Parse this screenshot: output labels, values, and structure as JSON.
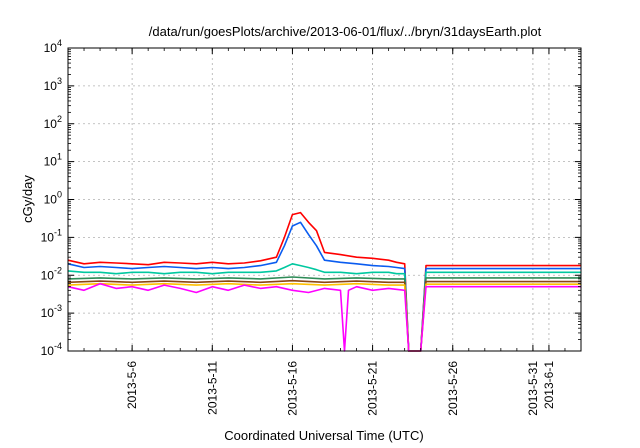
{
  "chart_data": {
    "type": "line",
    "title": "/data/run/goesPlots/archive/2013-06-01/flux/../bryn/31daysEarth.plot",
    "xlabel": "Coordinated Universal Time (UTC)",
    "ylabel": "cGy/day",
    "yscale": "log",
    "ylim": [
      0.0001,
      10000
    ],
    "xlim": [
      "2013-05-02",
      "2013-06-03"
    ],
    "grid": true,
    "legend": "none",
    "y_ticks": [
      {
        "base": "10",
        "exp": "-4"
      },
      {
        "base": "10",
        "exp": "-3"
      },
      {
        "base": "10",
        "exp": "-2"
      },
      {
        "base": "10",
        "exp": "-1"
      },
      {
        "base": "10",
        "exp": "0"
      },
      {
        "base": "10",
        "exp": "1"
      },
      {
        "base": "10",
        "exp": "2"
      },
      {
        "base": "10",
        "exp": "3"
      },
      {
        "base": "10",
        "exp": "4"
      }
    ],
    "x_ticks": [
      "2013-5-6",
      "2013-5-11",
      "2013-5-16",
      "2013-5-21",
      "2013-5-26",
      "2013-5-31",
      "2013-6-1"
    ],
    "series": [
      {
        "color": "#ff0000",
        "x": [
          "2013-05-02",
          "2013-05-03",
          "2013-05-04",
          "2013-05-05",
          "2013-05-06",
          "2013-05-07",
          "2013-05-08",
          "2013-05-09",
          "2013-05-10",
          "2013-05-11",
          "2013-05-12",
          "2013-05-13",
          "2013-05-14",
          "2013-05-15",
          "2013-05-15 12:00",
          "2013-05-16",
          "2013-05-16 12:00",
          "2013-05-17",
          "2013-05-17 12:00",
          "2013-05-18",
          "2013-05-19",
          "2013-05-20",
          "2013-05-21",
          "2013-05-22",
          "2013-05-22 12:00",
          "2013-05-23",
          "2013-05-23 06:00",
          "2013-05-24",
          "2013-05-24 08:00",
          "2013-06-03"
        ],
        "y": [
          0.025,
          0.02,
          0.022,
          0.021,
          0.02,
          0.019,
          0.022,
          0.021,
          0.02,
          0.022,
          0.02,
          0.021,
          0.024,
          0.03,
          0.1,
          0.4,
          0.45,
          0.25,
          0.15,
          0.04,
          0.035,
          0.03,
          0.028,
          0.025,
          0.022,
          0.02,
          0.0001,
          0.0001,
          0.018,
          0.018
        ]
      },
      {
        "color": "#0a5cf0",
        "x": [
          "2013-05-02",
          "2013-05-03",
          "2013-05-04",
          "2013-05-05",
          "2013-05-06",
          "2013-05-07",
          "2013-05-08",
          "2013-05-09",
          "2013-05-10",
          "2013-05-11",
          "2013-05-12",
          "2013-05-13",
          "2013-05-14",
          "2013-05-15",
          "2013-05-15 12:00",
          "2013-05-16",
          "2013-05-16 12:00",
          "2013-05-17",
          "2013-05-17 12:00",
          "2013-05-18",
          "2013-05-19",
          "2013-05-20",
          "2013-05-21",
          "2013-05-22",
          "2013-05-22 12:00",
          "2013-05-23",
          "2013-05-23 06:00",
          "2013-05-24",
          "2013-05-24 08:00",
          "2013-06-03"
        ],
        "y": [
          0.02,
          0.016,
          0.017,
          0.016,
          0.015,
          0.016,
          0.017,
          0.016,
          0.015,
          0.016,
          0.015,
          0.016,
          0.018,
          0.022,
          0.06,
          0.2,
          0.25,
          0.12,
          0.06,
          0.025,
          0.022,
          0.02,
          0.018,
          0.017,
          0.016,
          0.015,
          0.0001,
          0.0001,
          0.015,
          0.015
        ]
      },
      {
        "color": "#00c8a0",
        "x": [
          "2013-05-02",
          "2013-05-03",
          "2013-05-04",
          "2013-05-05",
          "2013-05-06",
          "2013-05-07",
          "2013-05-08",
          "2013-05-09",
          "2013-05-10",
          "2013-05-11",
          "2013-05-12",
          "2013-05-13",
          "2013-05-14",
          "2013-05-15",
          "2013-05-15 12:00",
          "2013-05-16",
          "2013-05-16 12:00",
          "2013-05-17",
          "2013-05-17 12:00",
          "2013-05-18",
          "2013-05-19",
          "2013-05-20",
          "2013-05-21",
          "2013-05-22",
          "2013-05-22 12:00",
          "2013-05-23",
          "2013-05-23 06:00",
          "2013-05-24",
          "2013-05-24 08:00",
          "2013-06-03"
        ],
        "y": [
          0.013,
          0.012,
          0.012,
          0.011,
          0.012,
          0.012,
          0.011,
          0.012,
          0.012,
          0.011,
          0.012,
          0.012,
          0.012,
          0.013,
          0.016,
          0.02,
          0.018,
          0.016,
          0.014,
          0.012,
          0.012,
          0.011,
          0.012,
          0.012,
          0.011,
          0.011,
          0.0001,
          0.0001,
          0.012,
          0.012
        ]
      },
      {
        "color": "#2e8b57",
        "x": [
          "2013-05-02",
          "2013-05-04",
          "2013-05-06",
          "2013-05-08",
          "2013-05-10",
          "2013-05-12",
          "2013-05-14",
          "2013-05-16",
          "2013-05-18",
          "2013-05-20",
          "2013-05-22",
          "2013-05-23",
          "2013-05-23 06:00",
          "2013-05-24",
          "2013-05-24 08:00",
          "2013-06-03"
        ],
        "y": [
          0.008,
          0.0085,
          0.008,
          0.0085,
          0.008,
          0.0085,
          0.008,
          0.009,
          0.008,
          0.0085,
          0.008,
          0.008,
          0.0001,
          0.0001,
          0.0085,
          0.0085
        ]
      },
      {
        "color": "#8b4513",
        "x": [
          "2013-05-02",
          "2013-05-04",
          "2013-05-06",
          "2013-05-08",
          "2013-05-10",
          "2013-05-12",
          "2013-05-14",
          "2013-05-16",
          "2013-05-18",
          "2013-05-20",
          "2013-05-22",
          "2013-05-23",
          "2013-05-23 06:00",
          "2013-05-24",
          "2013-05-24 08:00",
          "2013-06-03"
        ],
        "y": [
          0.0065,
          0.007,
          0.0065,
          0.007,
          0.0065,
          0.007,
          0.0065,
          0.0072,
          0.0065,
          0.007,
          0.0065,
          0.0065,
          0.0001,
          0.0001,
          0.0068,
          0.0068
        ]
      },
      {
        "color": "#ffc000",
        "x": [
          "2013-05-02",
          "2013-05-04",
          "2013-05-06",
          "2013-05-08",
          "2013-05-10",
          "2013-05-12",
          "2013-05-14",
          "2013-05-16",
          "2013-05-18",
          "2013-05-20",
          "2013-05-22",
          "2013-05-23",
          "2013-05-23 06:00",
          "2013-05-24",
          "2013-05-24 08:00",
          "2013-06-03"
        ],
        "y": [
          0.0055,
          0.006,
          0.0055,
          0.006,
          0.0055,
          0.006,
          0.0055,
          0.006,
          0.0055,
          0.006,
          0.0055,
          0.0055,
          0.0001,
          0.0001,
          0.0058,
          0.0058
        ]
      },
      {
        "color": "#ff00ff",
        "x": [
          "2013-05-02",
          "2013-05-03",
          "2013-05-04",
          "2013-05-05",
          "2013-05-06",
          "2013-05-07",
          "2013-05-08",
          "2013-05-09",
          "2013-05-10",
          "2013-05-11",
          "2013-05-12",
          "2013-05-13",
          "2013-05-14",
          "2013-05-15",
          "2013-05-16",
          "2013-05-17",
          "2013-05-18",
          "2013-05-19",
          "2013-05-19 06:00",
          "2013-05-19 12:00",
          "2013-05-20",
          "2013-05-21",
          "2013-05-22",
          "2013-05-23",
          "2013-05-23 06:00",
          "2013-05-24",
          "2013-05-24 08:00",
          "2013-06-03"
        ],
        "y": [
          0.005,
          0.004,
          0.006,
          0.0045,
          0.005,
          0.004,
          0.0055,
          0.0045,
          0.0035,
          0.005,
          0.004,
          0.0055,
          0.0045,
          0.005,
          0.004,
          0.0035,
          0.0045,
          0.004,
          0.0001,
          0.004,
          0.005,
          0.004,
          0.0045,
          0.004,
          0.0001,
          0.0001,
          0.005,
          0.005
        ]
      }
    ]
  }
}
